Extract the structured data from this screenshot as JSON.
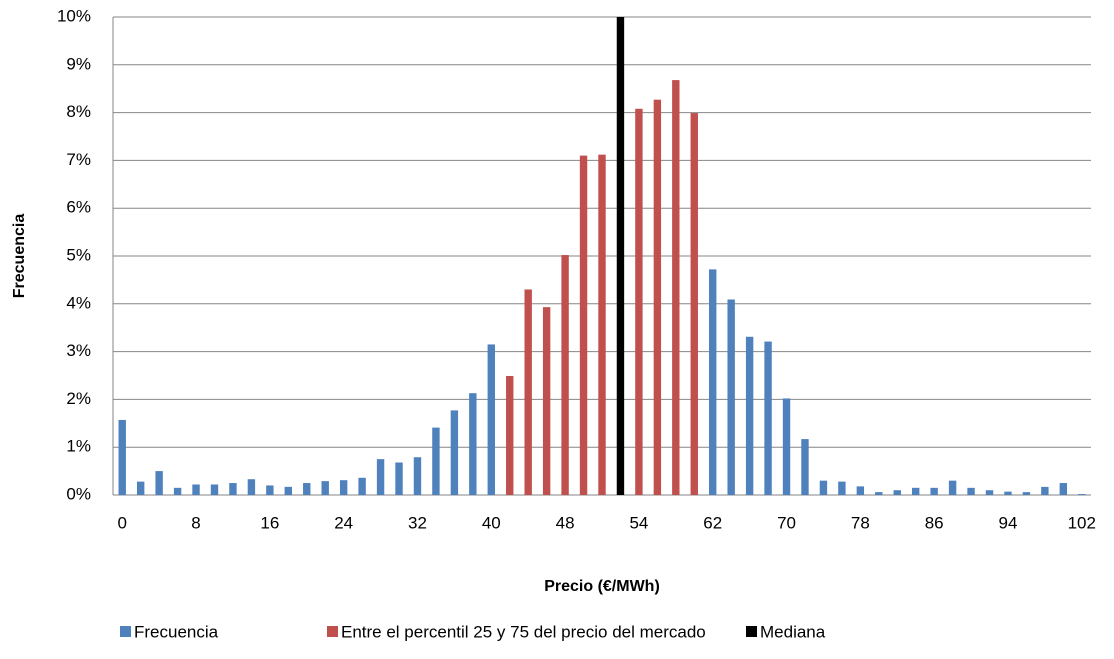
{
  "chart_data": {
    "type": "bar",
    "y_label": "Frecuencia",
    "x_label": "Precio (€/MWh)",
    "categories": [
      0,
      null,
      null,
      null,
      8,
      null,
      null,
      null,
      16,
      null,
      null,
      null,
      24,
      null,
      null,
      null,
      32,
      null,
      null,
      null,
      40,
      null,
      null,
      null,
      48,
      null,
      null,
      null,
      54,
      null,
      null,
      null,
      62,
      null,
      null,
      null,
      70,
      null,
      null,
      null,
      78,
      null,
      null,
      null,
      86,
      null,
      null,
      null,
      94,
      null,
      null,
      null,
      102
    ],
    "series": [
      {
        "name": "Frecuencia",
        "color": "#4f81bd",
        "values": [
          1.57,
          0.28,
          0.5,
          0.15,
          0.22,
          0.22,
          0.25,
          0.33,
          0.2,
          0.17,
          0.25,
          0.29,
          0.31,
          0.36,
          0.75,
          0.68,
          0.79,
          1.41,
          1.77,
          2.13,
          3.15,
          null,
          null,
          null,
          null,
          null,
          null,
          null,
          null,
          null,
          null,
          null,
          4.72,
          4.09,
          3.31,
          3.21,
          2.02,
          1.17,
          0.3,
          0.28,
          0.18,
          0.06,
          0.1,
          0.15,
          0.15,
          0.3,
          0.15,
          0.1,
          0.07,
          0.06,
          0.17,
          0.25,
          0.02
        ]
      },
      {
        "name": "Entre el percentil 25 y 75 del precio del mercado",
        "color": "#c0504d",
        "values": [
          null,
          null,
          null,
          null,
          null,
          null,
          null,
          null,
          null,
          null,
          null,
          null,
          null,
          null,
          null,
          null,
          null,
          null,
          null,
          null,
          null,
          2.49,
          4.3,
          3.93,
          5.02,
          7.1,
          7.12,
          null,
          8.08,
          8.27,
          8.68,
          7.99,
          null,
          null,
          null,
          null,
          null,
          null,
          null,
          null,
          null,
          null,
          null,
          null,
          null,
          null,
          null,
          null,
          null,
          null,
          null,
          null,
          null
        ]
      },
      {
        "name": "Mediana",
        "color": "#000000",
        "values": [
          null,
          null,
          null,
          null,
          null,
          null,
          null,
          null,
          null,
          null,
          null,
          null,
          null,
          null,
          null,
          null,
          null,
          null,
          null,
          null,
          null,
          null,
          null,
          null,
          null,
          null,
          null,
          10,
          null,
          null,
          null,
          null,
          null,
          null,
          null,
          null,
          null,
          null,
          null,
          null,
          null,
          null,
          null,
          null,
          null,
          null,
          null,
          null,
          null,
          null,
          null,
          null,
          null
        ]
      }
    ],
    "ylim": [
      0,
      10
    ],
    "yticks": [
      {
        "value": 0,
        "label": "0%"
      },
      {
        "value": 1,
        "label": "1%"
      },
      {
        "value": 2,
        "label": "2%"
      },
      {
        "value": 3,
        "label": "3%"
      },
      {
        "value": 4,
        "label": "4%"
      },
      {
        "value": 5,
        "label": "5%"
      },
      {
        "value": 6,
        "label": "6%"
      },
      {
        "value": 7,
        "label": "7%"
      },
      {
        "value": 8,
        "label": "8%"
      },
      {
        "value": 9,
        "label": "9%"
      },
      {
        "value": 10,
        "label": "10%"
      }
    ],
    "grid": true
  }
}
